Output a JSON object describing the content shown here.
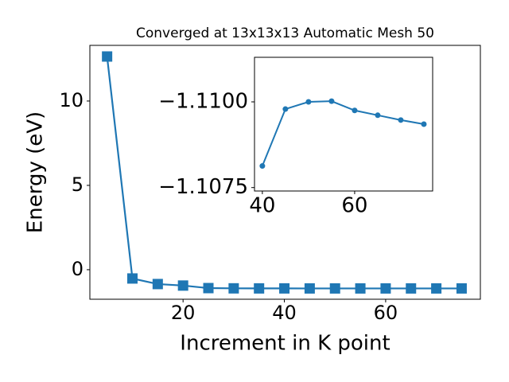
{
  "chart_data": [
    {
      "type": "line",
      "title": "Converged at 13x13x13 Automatic Mesh 50",
      "xlabel": "Increment in K point",
      "ylabel": "Energy (eV)",
      "x": [
        5,
        10,
        15,
        20,
        25,
        30,
        35,
        40,
        45,
        50,
        55,
        60,
        65,
        70,
        75
      ],
      "series": [
        {
          "color": "#1f77b4",
          "marker": "square",
          "values": [
            12.64,
            -0.52,
            -0.85,
            -0.94,
            -1.09,
            -1.105,
            -1.108,
            -1.10813,
            -1.10979,
            -1.11,
            -1.11002,
            -1.10975,
            -1.10961,
            -1.10947,
            -1.10935
          ]
        }
      ],
      "xlim": [
        1.6,
        78.7
      ],
      "ylim": [
        -1.75,
        13.3
      ],
      "xticks": [
        20,
        40,
        60
      ],
      "yticks": [
        0,
        5,
        10
      ]
    },
    {
      "type": "line",
      "x": [
        40,
        45,
        50,
        55,
        60,
        65,
        70,
        75
      ],
      "series": [
        {
          "color": "#1f77b4",
          "marker": "circle",
          "values": [
            -1.10813,
            -1.10979,
            -1.11,
            -1.11002,
            -1.10975,
            -1.10961,
            -1.10947,
            -1.10935
          ]
        }
      ],
      "xlim": [
        38.3,
        76.9
      ],
      "ylim": [
        -1.1074,
        -1.1113
      ],
      "xticks": [
        40,
        60
      ],
      "yticks": [
        {
          "value": -1.11,
          "label": "−1.1100"
        },
        {
          "value": -1.1075,
          "label": "−1.1075"
        }
      ]
    }
  ]
}
